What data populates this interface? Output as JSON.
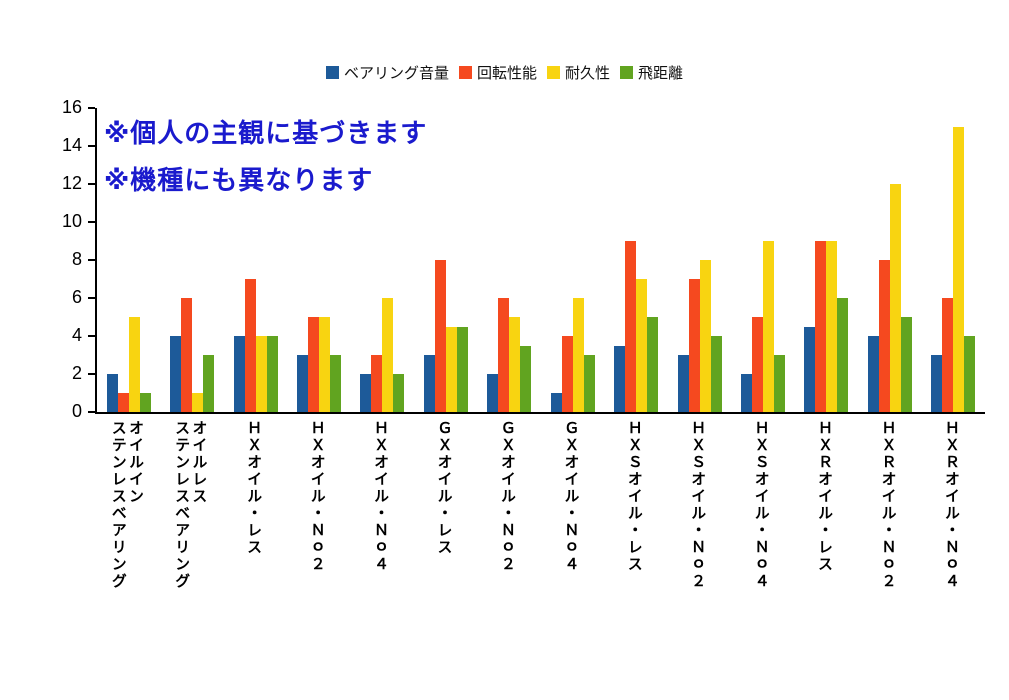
{
  "page": {
    "background": "#ffffff"
  },
  "annotation": {
    "line1": "※個人の主観に基づきます",
    "line2": "※機種にも異なります",
    "color": "#1a1acd"
  },
  "chart_data": {
    "type": "bar",
    "title": "",
    "xlabel": "",
    "ylabel": "",
    "ylim": [
      0,
      16
    ],
    "yticks": [
      0,
      2,
      4,
      6,
      8,
      10,
      12,
      14,
      16
    ],
    "grid": false,
    "legend_position": "top",
    "categories": [
      "オイルイン\nステンレスベアリング",
      "オイルレス\nステンレスベアリング",
      "ＨＸオイル・レス",
      "ＨＸオイル・Ｎｏ２",
      "ＨＸオイル・Ｎｏ４",
      "ＧＸオイル・レス",
      "ＧＸオイル・Ｎｏ２",
      "ＧＸオイル・Ｎｏ４",
      "ＨＸＳオイル・レス",
      "ＨＸＳオイル・Ｎｏ２",
      "ＨＸＳオイル・Ｎｏ４",
      "ＨＸＲオイル・レス",
      "ＨＸＲオイル・Ｎｏ２",
      "ＨＸＲオイル・Ｎｏ４"
    ],
    "series": [
      {
        "name": "ベアリング音量",
        "color": "#1d5a99",
        "values": [
          2,
          4,
          4,
          3,
          2,
          3,
          2,
          1,
          3.5,
          3,
          2,
          4.5,
          4,
          3
        ]
      },
      {
        "name": "回転性能",
        "color": "#f5491f",
        "values": [
          1,
          6,
          7,
          5,
          3,
          8,
          6,
          4,
          9,
          7,
          5,
          9,
          8,
          6
        ]
      },
      {
        "name": "耐久性",
        "color": "#f8d411",
        "values": [
          5,
          1,
          4,
          5,
          6,
          4.5,
          5,
          6,
          7,
          8,
          9,
          9,
          12,
          15
        ]
      },
      {
        "name": "飛距離",
        "color": "#61a420",
        "values": [
          1,
          3,
          4,
          3,
          2,
          4.5,
          3.5,
          3,
          5,
          4,
          3,
          6,
          5,
          4
        ]
      }
    ]
  }
}
